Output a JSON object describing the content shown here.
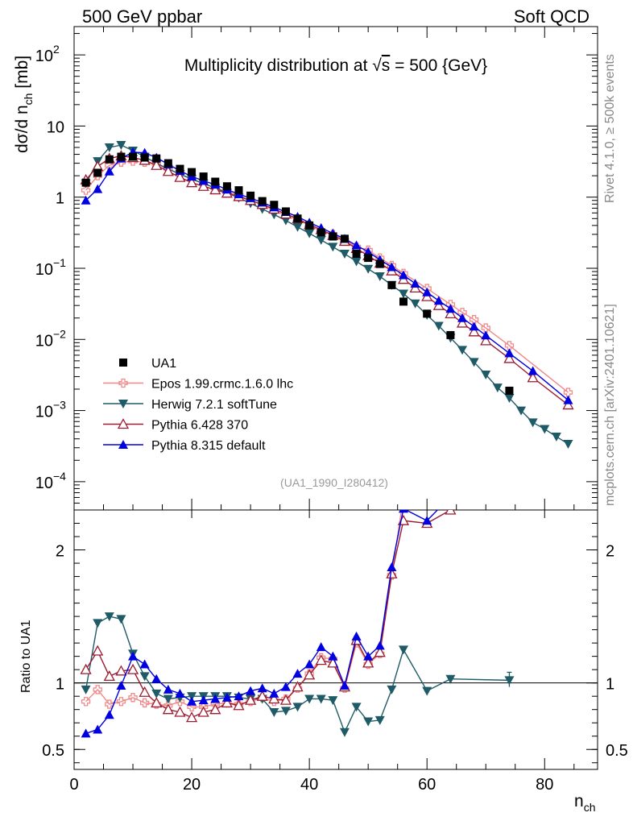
{
  "header": {
    "left": "500 GeV ppbar",
    "right": "Soft QCD",
    "side_top": "Rivet 4.1.0, ≥ 500k events",
    "side_bottom": "mcplots.cern.ch [arXiv:2401.10621]"
  },
  "chart_data": {
    "type": "scatter",
    "title_prefix": "Multiplicity distribution at ",
    "title_sqrt": "√",
    "title_s": "s",
    "title_suffix": " = 500 {GeV}",
    "analysis_tag": "(UA1_1990_I280412)",
    "ylabel_main": "dσ/d n",
    "ylabel_sub": "ch",
    "ylabel_unit": " [mb]",
    "ylabel_ratio": "Ratio to UA1",
    "xlabel_main": "n",
    "xlabel_sub": "ch",
    "xlim": [
      0,
      89
    ],
    "ylim_main": [
      4e-05,
      250
    ],
    "ylim_ratio": [
      0.35,
      2.3
    ],
    "x_ticks": [
      0,
      20,
      40,
      60,
      80
    ],
    "y_main_ticks": [
      {
        "v": 0.0001,
        "base": "10",
        "exp": "−4"
      },
      {
        "v": 0.001,
        "base": "10",
        "exp": "−3"
      },
      {
        "v": 0.01,
        "base": "10",
        "exp": "−2"
      },
      {
        "v": 0.1,
        "base": "10",
        "exp": "−1"
      },
      {
        "v": 1,
        "base": "1",
        "exp": ""
      },
      {
        "v": 10,
        "base": "10",
        "exp": ""
      },
      {
        "v": 100,
        "base": "10",
        "exp": "2"
      }
    ],
    "y_ratio_ticks": [
      {
        "v": 0.5,
        "label": "0.5"
      },
      {
        "v": 1,
        "label": "1"
      },
      {
        "v": 2,
        "label": "2"
      }
    ],
    "data": {
      "name": "UA1",
      "color": "#000000",
      "x": [
        2,
        4,
        6,
        8,
        10,
        12,
        14,
        16,
        18,
        20,
        22,
        24,
        26,
        28,
        30,
        32,
        34,
        36,
        38,
        40,
        42,
        44,
        46,
        48,
        50,
        52,
        54,
        56,
        60,
        64,
        74
      ],
      "y": [
        1.6,
        2.2,
        3.4,
        3.7,
        3.7,
        3.6,
        3.5,
        3.0,
        2.5,
        2.25,
        1.95,
        1.65,
        1.42,
        1.25,
        1.05,
        0.88,
        0.78,
        0.63,
        0.5,
        0.4,
        0.32,
        0.28,
        0.26,
        0.16,
        0.14,
        0.115,
        0.058,
        0.034,
        0.023,
        0.0115,
        0.0019
      ]
    },
    "series": [
      {
        "name": "Epos 1.99.crmc.1.6.0 lhc",
        "color": "#f08a8a",
        "marker": "cross",
        "x": [
          2,
          4,
          6,
          8,
          10,
          12,
          14,
          16,
          18,
          20,
          22,
          24,
          26,
          28,
          30,
          32,
          34,
          36,
          38,
          40,
          42,
          44,
          46,
          48,
          50,
          52,
          54,
          56,
          60,
          64,
          66,
          68,
          70,
          74,
          84
        ],
        "y": [
          1.25,
          2.0,
          2.8,
          3.1,
          3.2,
          3.1,
          2.9,
          2.5,
          2.1,
          1.8,
          1.55,
          1.35,
          1.2,
          1.05,
          0.9,
          0.78,
          0.65,
          0.55,
          0.48,
          0.4,
          0.33,
          0.3,
          0.25,
          0.2,
          0.18,
          0.14,
          0.11,
          0.085,
          0.052,
          0.031,
          0.024,
          0.019,
          0.0145,
          0.0082,
          0.0018
        ]
      },
      {
        "name": "Herwig 7.2.1 softTune",
        "color": "#1f5b66",
        "marker": "tridown",
        "x": [
          2,
          4,
          6,
          8,
          10,
          12,
          14,
          16,
          18,
          20,
          22,
          24,
          26,
          28,
          30,
          32,
          34,
          36,
          38,
          40,
          42,
          44,
          46,
          48,
          50,
          52,
          54,
          56,
          58,
          60,
          62,
          64,
          66,
          68,
          70,
          72,
          74,
          76,
          78,
          80,
          82,
          84
        ],
        "y": [
          1.55,
          3.2,
          5.0,
          5.4,
          4.5,
          3.7,
          3.0,
          2.5,
          2.1,
          1.8,
          1.55,
          1.35,
          1.15,
          0.98,
          0.82,
          0.68,
          0.57,
          0.47,
          0.38,
          0.31,
          0.25,
          0.2,
          0.16,
          0.125,
          0.098,
          0.077,
          0.058,
          0.044,
          0.032,
          0.022,
          0.0155,
          0.0105,
          0.0071,
          0.0048,
          0.0032,
          0.0021,
          0.0015,
          0.001,
          0.00068,
          0.00055,
          0.00043,
          0.00034
        ]
      },
      {
        "name": "Pythia 6.428 370",
        "color": "#9b1b30",
        "marker": "triup_open",
        "x": [
          2,
          4,
          6,
          8,
          10,
          12,
          14,
          16,
          18,
          20,
          22,
          24,
          26,
          28,
          30,
          32,
          34,
          36,
          38,
          40,
          42,
          44,
          46,
          48,
          50,
          52,
          54,
          56,
          58,
          60,
          62,
          64,
          66,
          68,
          70,
          74,
          78,
          84
        ],
        "y": [
          1.75,
          2.7,
          3.5,
          3.8,
          3.6,
          3.3,
          2.8,
          2.3,
          1.9,
          1.6,
          1.42,
          1.27,
          1.14,
          1.02,
          0.9,
          0.79,
          0.68,
          0.58,
          0.5,
          0.41,
          0.35,
          0.29,
          0.24,
          0.19,
          0.15,
          0.118,
          0.092,
          0.07,
          0.053,
          0.04,
          0.03,
          0.023,
          0.017,
          0.0128,
          0.0096,
          0.0054,
          0.0029,
          0.0012
        ]
      },
      {
        "name": "Pythia 8.315 default",
        "color": "#0000e0",
        "marker": "triup",
        "x": [
          2,
          4,
          6,
          8,
          10,
          12,
          14,
          16,
          18,
          20,
          22,
          24,
          26,
          28,
          30,
          32,
          34,
          36,
          38,
          40,
          42,
          44,
          46,
          48,
          50,
          52,
          54,
          56,
          58,
          60,
          62,
          64,
          66,
          68,
          70,
          74,
          78,
          84
        ],
        "y": [
          0.9,
          1.3,
          2.3,
          3.5,
          4.3,
          4.2,
          3.6,
          2.9,
          2.35,
          1.95,
          1.7,
          1.5,
          1.28,
          1.1,
          0.97,
          0.84,
          0.72,
          0.62,
          0.53,
          0.44,
          0.37,
          0.31,
          0.26,
          0.21,
          0.17,
          0.132,
          0.104,
          0.08,
          0.061,
          0.046,
          0.035,
          0.027,
          0.02,
          0.0152,
          0.0114,
          0.0064,
          0.0036,
          0.0014
        ]
      }
    ],
    "ratios": [
      {
        "x": [
          2,
          4,
          6,
          8,
          10,
          12,
          14,
          16,
          18,
          20,
          22,
          24,
          26,
          28,
          30,
          32,
          34,
          36,
          38,
          40,
          42,
          44,
          46,
          48,
          50,
          52,
          54,
          56,
          60,
          64
        ],
        "y": [
          0.86,
          0.95,
          0.84,
          0.86,
          0.89,
          0.85,
          0.84,
          0.83,
          0.86,
          0.82,
          0.82,
          0.84,
          0.85,
          0.84,
          0.86,
          0.89,
          0.86,
          0.88,
          0.96,
          1.07,
          1.19,
          1.18,
          0.96,
          1.3,
          1.14,
          1.22,
          1.81,
          2.4,
          2.35,
          2.7
        ]
      },
      {
        "x": [
          2,
          4,
          6,
          8,
          10,
          12,
          14,
          16,
          18,
          20,
          22,
          24,
          26,
          28,
          30,
          32,
          34,
          36,
          38,
          40,
          42,
          44,
          46,
          48,
          50,
          52,
          54,
          56,
          60,
          64,
          74
        ],
        "y": [
          0.95,
          1.45,
          1.5,
          1.48,
          1.22,
          1.05,
          0.92,
          0.88,
          0.89,
          0.9,
          0.9,
          0.9,
          0.9,
          0.89,
          0.88,
          0.88,
          0.78,
          0.79,
          0.82,
          0.88,
          0.88,
          0.87,
          0.63,
          0.82,
          0.71,
          0.72,
          0.95,
          1.25,
          0.94,
          1.03,
          1.02
        ]
      },
      {
        "x": [
          2,
          4,
          6,
          8,
          10,
          12,
          14,
          16,
          18,
          20,
          22,
          24,
          26,
          28,
          30,
          32,
          34,
          36,
          38,
          40,
          42,
          44,
          46,
          48,
          50,
          52,
          54,
          56,
          60,
          64
        ],
        "y": [
          1.1,
          1.24,
          1.05,
          1.09,
          1.1,
          0.93,
          0.85,
          0.8,
          0.78,
          0.74,
          0.78,
          0.8,
          0.85,
          0.83,
          0.87,
          0.9,
          0.88,
          0.87,
          0.97,
          1.06,
          1.17,
          1.15,
          0.97,
          1.32,
          1.15,
          1.23,
          1.82,
          2.22,
          2.2,
          2.3
        ]
      },
      {
        "x": [
          2,
          4,
          6,
          8,
          10,
          12,
          14,
          16,
          18,
          20,
          22,
          24,
          26,
          28,
          30,
          32,
          34,
          36,
          38,
          40,
          42,
          44,
          46,
          48,
          50,
          52,
          54,
          56,
          60,
          64
        ],
        "y": [
          0.62,
          0.65,
          0.76,
          0.98,
          1.2,
          1.14,
          1.03,
          0.95,
          0.92,
          0.86,
          0.87,
          0.88,
          0.89,
          0.9,
          0.94,
          0.96,
          0.92,
          0.97,
          1.07,
          1.14,
          1.27,
          1.2,
          0.98,
          1.35,
          1.2,
          1.28,
          1.87,
          2.31,
          2.22,
          2.4
        ]
      }
    ],
    "data_ratio_err": {
      "x": 74,
      "y": 1.02,
      "lo": 0.97,
      "hi": 1.08
    }
  }
}
